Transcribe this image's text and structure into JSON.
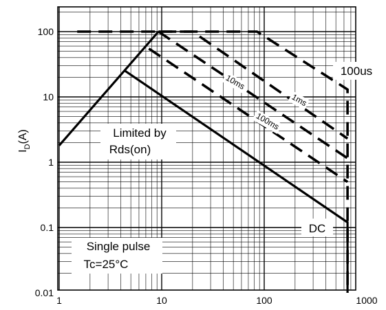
{
  "chart_data": {
    "type": "line",
    "title": "",
    "xlabel": "",
    "ylabel_main": "I",
    "ylabel_sub": "D",
    "ylabel_unit": "(A)",
    "x_scale": "log",
    "y_scale": "log",
    "xlim": [
      1,
      1000
    ],
    "ylim": [
      0.01,
      200
    ],
    "grid": true,
    "x_ticks": [
      {
        "value": 1,
        "label": "1"
      },
      {
        "value": 10,
        "label": "10"
      },
      {
        "value": 100,
        "label": "100"
      },
      {
        "value": 1000,
        "label": "1000"
      }
    ],
    "y_ticks": [
      {
        "value": 0.01,
        "label": "0.01"
      },
      {
        "value": 0.1,
        "label": "0.1"
      },
      {
        "value": 1,
        "label": "1"
      },
      {
        "value": 10,
        "label": "10"
      },
      {
        "value": 100,
        "label": "100"
      }
    ],
    "series": [
      {
        "name": "",
        "style": "solid",
        "points": [
          [
            1,
            1.8
          ],
          [
            9.3,
            100
          ]
        ]
      },
      {
        "name": "DC",
        "style": "solid",
        "points": [
          [
            4.4,
            25
          ],
          [
            650,
            0.12
          ],
          [
            650,
            0.01
          ]
        ]
      },
      {
        "name": "100us",
        "style": "dashed",
        "points": [
          [
            1.5,
            100
          ],
          [
            85,
            100
          ],
          [
            650,
            13
          ],
          [
            650,
            0.01
          ]
        ]
      },
      {
        "name": "1ms",
        "style": "dashed",
        "points": [
          [
            9.3,
            100
          ],
          [
            20,
            100
          ],
          [
            650,
            2.3
          ]
        ]
      },
      {
        "name": "10ms",
        "style": "dashed",
        "points": [
          [
            9.3,
            100
          ],
          [
            650,
            1.15
          ]
        ]
      },
      {
        "name": "100ms",
        "style": "dashed",
        "points": [
          [
            7.5,
            55
          ],
          [
            650,
            0.5
          ]
        ]
      }
    ],
    "annotations": [
      {
        "id": "limited",
        "lines": [
          "Limited by",
          "Rds(on)"
        ]
      },
      {
        "id": "single",
        "lines": [
          "Single pulse",
          "Tc=25°C"
        ]
      },
      {
        "id": "dc",
        "text": "DC"
      },
      {
        "id": "us100",
        "text": "100us"
      },
      {
        "id": "ms1",
        "text": "1ms"
      },
      {
        "id": "ms10",
        "text": "10ms"
      },
      {
        "id": "ms100",
        "text": "100ms"
      }
    ]
  }
}
